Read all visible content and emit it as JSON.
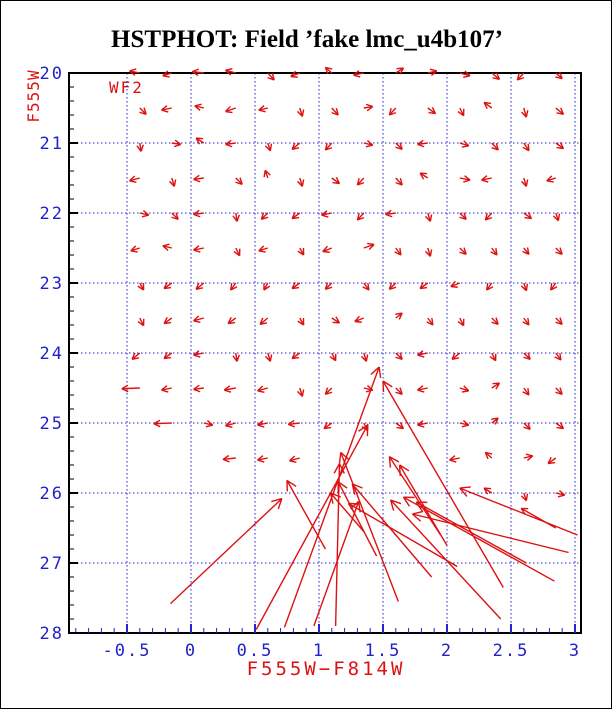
{
  "chart_data": {
    "type": "quiver",
    "description": "HSTPHOT fake-star photometry displacement vector field on a color-magnitude diagram; arrows run from input (color, mag) grid points to recovered values",
    "title": "HSTPHOT: Field ’fake lmc_u4b107’",
    "annotation": "WF2",
    "xlabel": "F555W−F814W",
    "ylabel": "F555W",
    "xlim": [
      -0.953,
      3.047
    ],
    "ylim": [
      20,
      28
    ],
    "y_direction": "down",
    "grid": "dotted blue lines at major ticks",
    "x_ticks_major": [
      -0.5,
      0,
      0.5,
      1,
      1.5,
      2,
      2.5,
      3
    ],
    "x_tick_labels": [
      "-0.5",
      "0",
      "0.5",
      "1",
      "1.5",
      "2",
      "2.5",
      "3"
    ],
    "x_minor_step": 0.1,
    "y_ticks_major": [
      20,
      21,
      22,
      23,
      24,
      25,
      26,
      27,
      28
    ],
    "y_tick_labels": [
      "20",
      "21",
      "22",
      "23",
      "24",
      "25",
      "26",
      "27",
      "28"
    ],
    "y_minor_step": 0.2,
    "colors": {
      "vectors": "#dd1111",
      "axis_tick_text": "#2222cc",
      "grid": "#2222cc",
      "bottom_ticks": "#2222cc",
      "left_ticks": "#000000",
      "frame": "#000000",
      "axis_titles": "#dd1111",
      "title": "#000000",
      "background": "#ffffff"
    },
    "vectors": [
      [
        -0.4,
        20.0,
        -0.08,
        -0.03
      ],
      [
        -0.15,
        20.0,
        -0.07,
        0.04
      ],
      [
        0.1,
        20.0,
        -0.09,
        -0.02
      ],
      [
        0.35,
        20.0,
        -0.08,
        -0.04
      ],
      [
        0.6,
        20.0,
        0.05,
        0.1
      ],
      [
        0.85,
        20.0,
        -0.07,
        0.05
      ],
      [
        1.1,
        20.0,
        -0.05,
        -0.08
      ],
      [
        1.35,
        20.0,
        -0.08,
        0.03
      ],
      [
        1.6,
        20.0,
        0.06,
        -0.07
      ],
      [
        1.85,
        20.0,
        0.07,
        -0.03
      ],
      [
        2.1,
        20.0,
        0.08,
        0.04
      ],
      [
        2.35,
        20.0,
        0.06,
        0.09
      ],
      [
        2.6,
        20.0,
        -0.05,
        0.1
      ],
      [
        2.85,
        20.0,
        0.05,
        0.08
      ],
      [
        -0.4,
        20.5,
        0.05,
        0.09
      ],
      [
        -0.15,
        20.5,
        -0.08,
        0.03
      ],
      [
        0.1,
        20.5,
        -0.07,
        -0.03
      ],
      [
        0.35,
        20.5,
        -0.08,
        0.05
      ],
      [
        0.6,
        20.5,
        -0.07,
        0.03
      ],
      [
        0.85,
        20.5,
        0.02,
        0.12
      ],
      [
        1.1,
        20.5,
        0.05,
        0.1
      ],
      [
        1.35,
        20.5,
        0.07,
        -0.02
      ],
      [
        1.6,
        20.5,
        -0.05,
        0.1
      ],
      [
        1.85,
        20.5,
        0.06,
        0.08
      ],
      [
        2.1,
        20.5,
        0.03,
        0.11
      ],
      [
        2.35,
        20.5,
        -0.06,
        -0.08
      ],
      [
        2.6,
        20.5,
        0.02,
        0.13
      ],
      [
        2.85,
        20.5,
        0.06,
        0.09
      ],
      [
        -0.4,
        21.0,
        0.01,
        0.12
      ],
      [
        -0.15,
        21.0,
        0.07,
        0.02
      ],
      [
        0.1,
        21.0,
        -0.06,
        -0.07
      ],
      [
        0.35,
        21.0,
        -0.08,
        0.02
      ],
      [
        0.6,
        21.0,
        0.02,
        0.11
      ],
      [
        0.85,
        21.0,
        -0.06,
        0.09
      ],
      [
        1.1,
        21.0,
        -0.05,
        0.1
      ],
      [
        1.35,
        21.0,
        0.07,
        0.03
      ],
      [
        1.6,
        21.0,
        0.05,
        0.09
      ],
      [
        1.85,
        21.0,
        -0.08,
        0.02
      ],
      [
        2.1,
        21.0,
        0.07,
        0.04
      ],
      [
        2.35,
        21.0,
        0.05,
        0.1
      ],
      [
        2.6,
        21.0,
        0.04,
        0.11
      ],
      [
        2.85,
        21.0,
        0.06,
        0.08
      ],
      [
        -0.4,
        21.5,
        -0.08,
        0.04
      ],
      [
        -0.15,
        21.5,
        0.02,
        0.12
      ],
      [
        0.1,
        21.5,
        -0.08,
        0.02
      ],
      [
        0.35,
        21.5,
        0.05,
        0.09
      ],
      [
        0.6,
        21.5,
        -0.02,
        -0.11
      ],
      [
        0.85,
        21.5,
        0.02,
        0.12
      ],
      [
        1.1,
        21.5,
        0.06,
        0.08
      ],
      [
        1.35,
        21.5,
        -0.05,
        0.1
      ],
      [
        1.6,
        21.5,
        0.05,
        0.1
      ],
      [
        1.85,
        21.5,
        -0.06,
        -0.07
      ],
      [
        2.1,
        21.5,
        0.08,
        0.03
      ],
      [
        2.35,
        21.5,
        -0.08,
        0.03
      ],
      [
        2.6,
        21.5,
        0.02,
        0.12
      ],
      [
        2.85,
        21.5,
        -0.07,
        0.04
      ],
      [
        -0.4,
        22.0,
        0.07,
        0.03
      ],
      [
        -0.15,
        22.0,
        0.05,
        0.09
      ],
      [
        0.1,
        22.0,
        -0.08,
        0.02
      ],
      [
        0.35,
        22.0,
        0.01,
        0.12
      ],
      [
        0.6,
        22.0,
        -0.05,
        0.09
      ],
      [
        0.85,
        22.0,
        -0.06,
        0.08
      ],
      [
        1.1,
        22.0,
        -0.08,
        0.03
      ],
      [
        1.35,
        22.0,
        -0.05,
        0.1
      ],
      [
        1.6,
        22.0,
        -0.08,
        0.02
      ],
      [
        1.85,
        22.0,
        0.02,
        0.12
      ],
      [
        2.1,
        22.0,
        0.05,
        0.09
      ],
      [
        2.35,
        22.0,
        -0.05,
        0.1
      ],
      [
        2.6,
        22.0,
        0.06,
        0.08
      ],
      [
        2.85,
        22.0,
        0.02,
        0.11
      ],
      [
        -0.4,
        22.5,
        -0.07,
        0.04
      ],
      [
        -0.15,
        22.5,
        -0.07,
        -0.03
      ],
      [
        0.1,
        22.5,
        -0.08,
        0.03
      ],
      [
        0.35,
        22.5,
        0.03,
        0.11
      ],
      [
        0.6,
        22.5,
        -0.07,
        0.04
      ],
      [
        0.85,
        22.5,
        0.03,
        0.1
      ],
      [
        1.1,
        22.5,
        -0.07,
        0.05
      ],
      [
        1.35,
        22.5,
        0.08,
        -0.05
      ],
      [
        1.6,
        22.5,
        0.04,
        0.1
      ],
      [
        1.85,
        22.5,
        0.02,
        0.12
      ],
      [
        2.1,
        22.5,
        0.05,
        0.09
      ],
      [
        2.35,
        22.5,
        0.04,
        0.1
      ],
      [
        2.6,
        22.5,
        0.04,
        0.09
      ],
      [
        2.85,
        22.5,
        0.05,
        0.09
      ],
      [
        -0.4,
        23.0,
        0.03,
        0.1
      ],
      [
        -0.15,
        23.0,
        -0.06,
        0.08
      ],
      [
        0.1,
        23.0,
        -0.06,
        0.09
      ],
      [
        0.35,
        23.0,
        -0.04,
        0.1
      ],
      [
        0.6,
        23.0,
        -0.03,
        0.1
      ],
      [
        0.85,
        23.0,
        -0.06,
        0.08
      ],
      [
        1.1,
        23.0,
        -0.05,
        0.09
      ],
      [
        1.35,
        23.0,
        0.04,
        0.1
      ],
      [
        1.6,
        23.0,
        -0.05,
        0.09
      ],
      [
        1.85,
        23.0,
        -0.06,
        0.08
      ],
      [
        2.1,
        23.0,
        -0.07,
        0.05
      ],
      [
        2.35,
        23.0,
        -0.04,
        0.1
      ],
      [
        2.6,
        23.0,
        0.02,
        0.11
      ],
      [
        2.85,
        23.0,
        -0.04,
        0.1
      ],
      [
        -0.4,
        23.5,
        0.03,
        0.11
      ],
      [
        -0.15,
        23.5,
        -0.06,
        0.08
      ],
      [
        0.1,
        23.5,
        -0.08,
        0.04
      ],
      [
        0.35,
        23.5,
        -0.06,
        0.08
      ],
      [
        0.6,
        23.5,
        -0.06,
        0.09
      ],
      [
        0.85,
        23.5,
        0.03,
        0.1
      ],
      [
        1.1,
        23.5,
        0.06,
        0.07
      ],
      [
        1.35,
        23.5,
        -0.07,
        0.05
      ],
      [
        1.6,
        23.5,
        0.05,
        -0.07
      ],
      [
        1.85,
        23.5,
        0.04,
        0.1
      ],
      [
        2.1,
        23.5,
        0.03,
        0.11
      ],
      [
        2.35,
        23.5,
        0.05,
        0.09
      ],
      [
        2.6,
        23.5,
        0.04,
        0.1
      ],
      [
        2.85,
        23.5,
        0.05,
        0.09
      ],
      [
        -0.4,
        24.0,
        -0.06,
        0.09
      ],
      [
        -0.15,
        24.0,
        -0.06,
        0.08
      ],
      [
        0.1,
        24.0,
        -0.08,
        0.03
      ],
      [
        0.35,
        24.0,
        0.01,
        0.12
      ],
      [
        0.6,
        24.0,
        0.02,
        0.12
      ],
      [
        0.85,
        24.0,
        -0.06,
        0.08
      ],
      [
        1.1,
        24.0,
        0.03,
        0.11
      ],
      [
        1.35,
        24.0,
        0.02,
        0.12
      ],
      [
        1.6,
        24.0,
        0.05,
        0.09
      ],
      [
        1.85,
        24.0,
        -0.08,
        0.03
      ],
      [
        2.1,
        24.0,
        -0.06,
        0.09
      ],
      [
        2.35,
        24.0,
        0.03,
        0.11
      ],
      [
        2.6,
        24.0,
        0.05,
        0.09
      ],
      [
        2.85,
        24.0,
        0.04,
        0.1
      ],
      [
        -0.4,
        24.5,
        -0.14,
        0.01
      ],
      [
        -0.15,
        24.5,
        -0.08,
        0.03
      ],
      [
        0.1,
        24.5,
        -0.08,
        0.02
      ],
      [
        0.35,
        24.5,
        -0.09,
        0.03
      ],
      [
        0.6,
        24.5,
        -0.08,
        0.04
      ],
      [
        0.85,
        24.5,
        0.02,
        0.12
      ],
      [
        1.1,
        24.5,
        -0.05,
        0.09
      ],
      [
        1.35,
        24.5,
        0.07,
        0.03
      ],
      [
        1.6,
        24.5,
        0.05,
        0.09
      ],
      [
        1.85,
        24.5,
        -0.08,
        0.03
      ],
      [
        2.1,
        24.5,
        0.07,
        0.04
      ],
      [
        2.35,
        24.5,
        0.06,
        -0.07
      ],
      [
        2.6,
        24.5,
        0.04,
        0.1
      ],
      [
        2.85,
        24.5,
        0.05,
        0.09
      ],
      [
        -0.15,
        25.0,
        -0.14,
        0.01
      ],
      [
        0.1,
        25.0,
        0.07,
        0.03
      ],
      [
        0.35,
        25.0,
        -0.08,
        0.04
      ],
      [
        0.6,
        25.0,
        -0.08,
        0.03
      ],
      [
        0.85,
        25.0,
        -0.09,
        0.02
      ],
      [
        1.1,
        25.0,
        -0.06,
        0.08
      ],
      [
        1.35,
        25.0,
        0.03,
        0.11
      ],
      [
        1.6,
        25.0,
        0.06,
        0.08
      ],
      [
        1.85,
        25.0,
        -0.08,
        0.03
      ],
      [
        2.1,
        25.0,
        0.07,
        0.03
      ],
      [
        2.35,
        25.0,
        0.05,
        -0.07
      ],
      [
        2.6,
        25.0,
        0.05,
        0.09
      ],
      [
        2.85,
        25.0,
        0.06,
        0.08
      ],
      [
        0.35,
        25.5,
        -0.1,
        0.02
      ],
      [
        0.6,
        25.5,
        -0.08,
        0.03
      ],
      [
        0.85,
        25.5,
        -0.08,
        0.04
      ],
      [
        2.1,
        25.5,
        -0.08,
        0.03
      ],
      [
        2.35,
        25.5,
        -0.05,
        -0.08
      ],
      [
        2.6,
        25.5,
        0.07,
        -0.03
      ],
      [
        2.85,
        25.5,
        -0.06,
        0.08
      ],
      [
        2.35,
        26.0,
        -0.06,
        -0.07
      ],
      [
        2.6,
        26.0,
        0.02,
        0.11
      ],
      [
        2.85,
        26.0,
        0.07,
        0.03
      ],
      [
        -0.16,
        27.58,
        0.87,
        -1.5
      ],
      [
        0.73,
        27.92,
        0.74,
        -3.72
      ],
      [
        0.51,
        27.95,
        0.87,
        -2.92
      ],
      [
        1.13,
        27.9,
        0.03,
        -2.32
      ],
      [
        1.62,
        27.55,
        -0.45,
        -2.13
      ],
      [
        1.88,
        27.2,
        -0.62,
        -1.33
      ],
      [
        2.08,
        27.05,
        -0.85,
        -0.9
      ],
      [
        0.96,
        27.9,
        0.35,
        -1.78
      ],
      [
        1.05,
        26.8,
        -0.3,
        -0.98
      ],
      [
        2.42,
        27.8,
        -0.86,
        -1.7
      ],
      [
        2.84,
        27.26,
        -1.18,
        -1.2
      ],
      [
        2.62,
        27.0,
        -0.86,
        -0.87
      ],
      [
        2.95,
        26.85,
        -1.22,
        -0.55
      ],
      [
        2.85,
        26.5,
        -0.27,
        -0.28
      ],
      [
        2.44,
        27.35,
        -0.94,
        -2.95
      ],
      [
        2.0,
        26.75,
        -0.37,
        -1.15
      ],
      [
        1.95,
        26.6,
        -0.4,
        -1.12
      ],
      [
        1.35,
        26.55,
        -0.26,
        -0.55
      ],
      [
        3.02,
        26.6,
        -0.92,
        -0.67
      ],
      [
        1.45,
        26.9,
        -0.3,
        -1.06
      ]
    ]
  }
}
